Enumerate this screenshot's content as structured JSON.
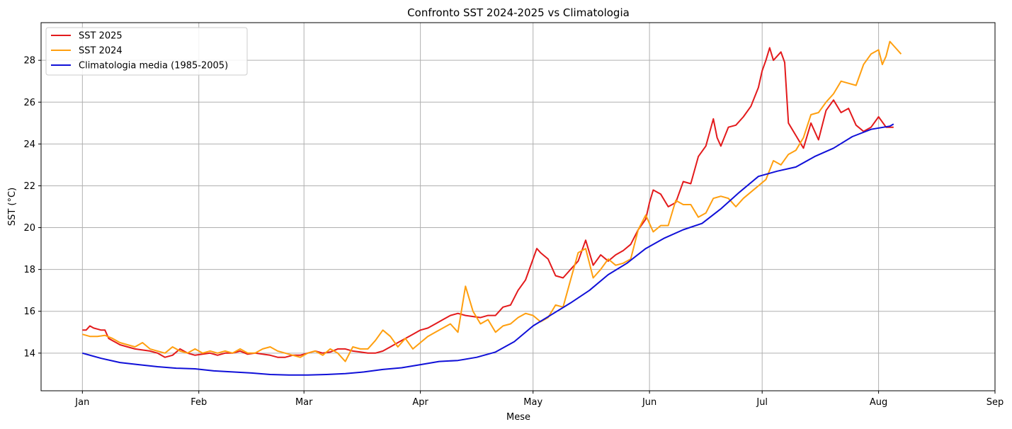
{
  "chart_data": {
    "type": "line",
    "title": "Confronto SST 2024-2025 vs Climatologia",
    "xlabel": "Mese",
    "ylabel": "SST (°C)",
    "x_unit": "day of year (0 = 1 Jan)",
    "xlim": [
      -11,
      243
    ],
    "ylim": [
      12.2,
      29.8
    ],
    "x_ticks": [
      {
        "label": "Jan",
        "value": 0
      },
      {
        "label": "Feb",
        "value": 31
      },
      {
        "label": "Mar",
        "value": 59
      },
      {
        "label": "Apr",
        "value": 90
      },
      {
        "label": "May",
        "value": 120
      },
      {
        "label": "Jun",
        "value": 151
      },
      {
        "label": "Jul",
        "value": 181
      },
      {
        "label": "Aug",
        "value": 212
      },
      {
        "label": "Sep",
        "value": 243
      }
    ],
    "y_ticks": [
      14,
      16,
      18,
      20,
      22,
      24,
      26,
      28
    ],
    "grid": true,
    "legend_position": "upper-left",
    "series": [
      {
        "name": "SST 2025",
        "color": "#e31a1c",
        "x": [
          0,
          1,
          2,
          3,
          4,
          5,
          6,
          7,
          8,
          9,
          10,
          12,
          14,
          16,
          18,
          20,
          22,
          24,
          26,
          28,
          30,
          32,
          34,
          36,
          38,
          40,
          42,
          44,
          46,
          48,
          50,
          52,
          54,
          56,
          58,
          60,
          62,
          64,
          66,
          68,
          70,
          72,
          74,
          76,
          78,
          80,
          82,
          84,
          86,
          88,
          90,
          92,
          94,
          96,
          98,
          100,
          102,
          104,
          106,
          108,
          110,
          112,
          114,
          116,
          118,
          120,
          121,
          122,
          124,
          126,
          128,
          130,
          132,
          134,
          136,
          138,
          140,
          142,
          144,
          146,
          148,
          150,
          151,
          152,
          154,
          156,
          158,
          160,
          162,
          164,
          166,
          168,
          169,
          170,
          172,
          174,
          176,
          178,
          180,
          181,
          182,
          183,
          184,
          185,
          186,
          187,
          188,
          190,
          192,
          194,
          196,
          198,
          200,
          202,
          204,
          206,
          208,
          210,
          212,
          214,
          216
        ],
        "values": [
          15.1,
          15.1,
          15.3,
          15.2,
          15.15,
          15.1,
          15.1,
          14.7,
          14.6,
          14.5,
          14.4,
          14.3,
          14.2,
          14.15,
          14.1,
          14.0,
          13.8,
          13.9,
          14.2,
          14.0,
          13.9,
          13.95,
          14.0,
          13.9,
          14.0,
          14.0,
          14.1,
          13.95,
          14.0,
          13.95,
          13.9,
          13.8,
          13.8,
          13.9,
          13.9,
          14.0,
          14.1,
          14.0,
          14.05,
          14.2,
          14.2,
          14.1,
          14.05,
          14.0,
          14.0,
          14.1,
          14.3,
          14.5,
          14.7,
          14.9,
          15.1,
          15.2,
          15.4,
          15.6,
          15.8,
          15.9,
          15.8,
          15.75,
          15.7,
          15.8,
          15.8,
          16.2,
          16.3,
          17.0,
          17.5,
          18.5,
          19.0,
          18.8,
          18.5,
          17.7,
          17.6,
          18.0,
          18.4,
          19.4,
          18.2,
          18.7,
          18.4,
          18.7,
          18.9,
          19.2,
          19.9,
          20.4,
          21.2,
          21.8,
          21.6,
          21.0,
          21.2,
          22.2,
          22.1,
          23.4,
          23.9,
          25.2,
          24.3,
          23.9,
          24.8,
          24.9,
          25.3,
          25.8,
          26.7,
          27.5,
          28.0,
          28.6,
          28.0,
          28.2,
          28.4,
          27.9,
          25.0,
          24.4,
          23.8,
          25.0,
          24.2,
          25.6,
          26.1,
          25.5,
          25.7,
          24.9,
          24.6,
          24.8,
          25.3,
          24.8,
          24.8
        ]
      },
      {
        "name": "SST 2024",
        "color": "#ff9f0f",
        "x": [
          0,
          2,
          4,
          6,
          8,
          10,
          12,
          14,
          16,
          18,
          20,
          22,
          24,
          26,
          28,
          30,
          32,
          34,
          36,
          38,
          40,
          42,
          44,
          46,
          48,
          50,
          52,
          54,
          56,
          58,
          60,
          62,
          64,
          66,
          68,
          70,
          72,
          74,
          76,
          78,
          80,
          82,
          84,
          86,
          88,
          90,
          92,
          94,
          96,
          98,
          100,
          102,
          104,
          106,
          108,
          110,
          112,
          114,
          116,
          118,
          120,
          122,
          124,
          126,
          128,
          130,
          132,
          134,
          136,
          138,
          140,
          142,
          144,
          146,
          148,
          150,
          152,
          154,
          156,
          158,
          160,
          162,
          164,
          166,
          168,
          170,
          172,
          174,
          176,
          178,
          180,
          182,
          184,
          186,
          188,
          190,
          192,
          194,
          196,
          198,
          200,
          202,
          204,
          206,
          208,
          210,
          212,
          213,
          214,
          215,
          216,
          218
        ],
        "values": [
          14.9,
          14.8,
          14.8,
          14.85,
          14.7,
          14.5,
          14.4,
          14.3,
          14.5,
          14.2,
          14.1,
          14.0,
          14.3,
          14.1,
          14.0,
          14.2,
          14.0,
          14.1,
          14.0,
          14.1,
          14.0,
          14.2,
          14.0,
          14.0,
          14.2,
          14.3,
          14.1,
          14.0,
          13.9,
          13.8,
          14.0,
          14.1,
          13.9,
          14.2,
          14.0,
          13.6,
          14.3,
          14.2,
          14.2,
          14.6,
          15.1,
          14.8,
          14.3,
          14.7,
          14.2,
          14.5,
          14.8,
          15.0,
          15.2,
          15.4,
          15.0,
          17.2,
          16.0,
          15.4,
          15.6,
          15.0,
          15.3,
          15.4,
          15.7,
          15.9,
          15.8,
          15.5,
          15.7,
          16.3,
          16.2,
          17.5,
          18.8,
          19.0,
          17.6,
          18.0,
          18.5,
          18.2,
          18.3,
          18.5,
          19.9,
          20.6,
          19.8,
          20.1,
          20.1,
          21.3,
          21.1,
          21.1,
          20.5,
          20.7,
          21.4,
          21.5,
          21.4,
          21.0,
          21.4,
          21.7,
          22.0,
          22.3,
          23.2,
          23.0,
          23.5,
          23.7,
          24.3,
          25.4,
          25.5,
          26.0,
          26.4,
          27.0,
          26.9,
          26.8,
          27.8,
          28.3,
          28.5,
          27.8,
          28.2,
          28.9,
          28.7,
          28.3
        ]
      },
      {
        "name": "Climatologia media (1985-2005)",
        "color": "#1010d8",
        "x": [
          0,
          5,
          10,
          15,
          20,
          25,
          30,
          35,
          40,
          45,
          50,
          55,
          60,
          65,
          70,
          75,
          80,
          85,
          90,
          95,
          100,
          105,
          110,
          115,
          120,
          125,
          130,
          135,
          140,
          145,
          150,
          155,
          160,
          165,
          170,
          175,
          180,
          185,
          190,
          195,
          200,
          205,
          210,
          215,
          216
        ],
        "values": [
          14.0,
          13.75,
          13.55,
          13.45,
          13.35,
          13.28,
          13.25,
          13.15,
          13.1,
          13.05,
          12.98,
          12.95,
          12.95,
          12.98,
          13.02,
          13.1,
          13.22,
          13.3,
          13.45,
          13.6,
          13.65,
          13.8,
          14.05,
          14.55,
          15.3,
          15.85,
          16.4,
          17.0,
          17.75,
          18.3,
          19.0,
          19.5,
          19.9,
          20.2,
          20.9,
          21.7,
          22.45,
          22.7,
          22.9,
          23.4,
          23.8,
          24.35,
          24.7,
          24.85,
          24.95
        ]
      }
    ]
  }
}
